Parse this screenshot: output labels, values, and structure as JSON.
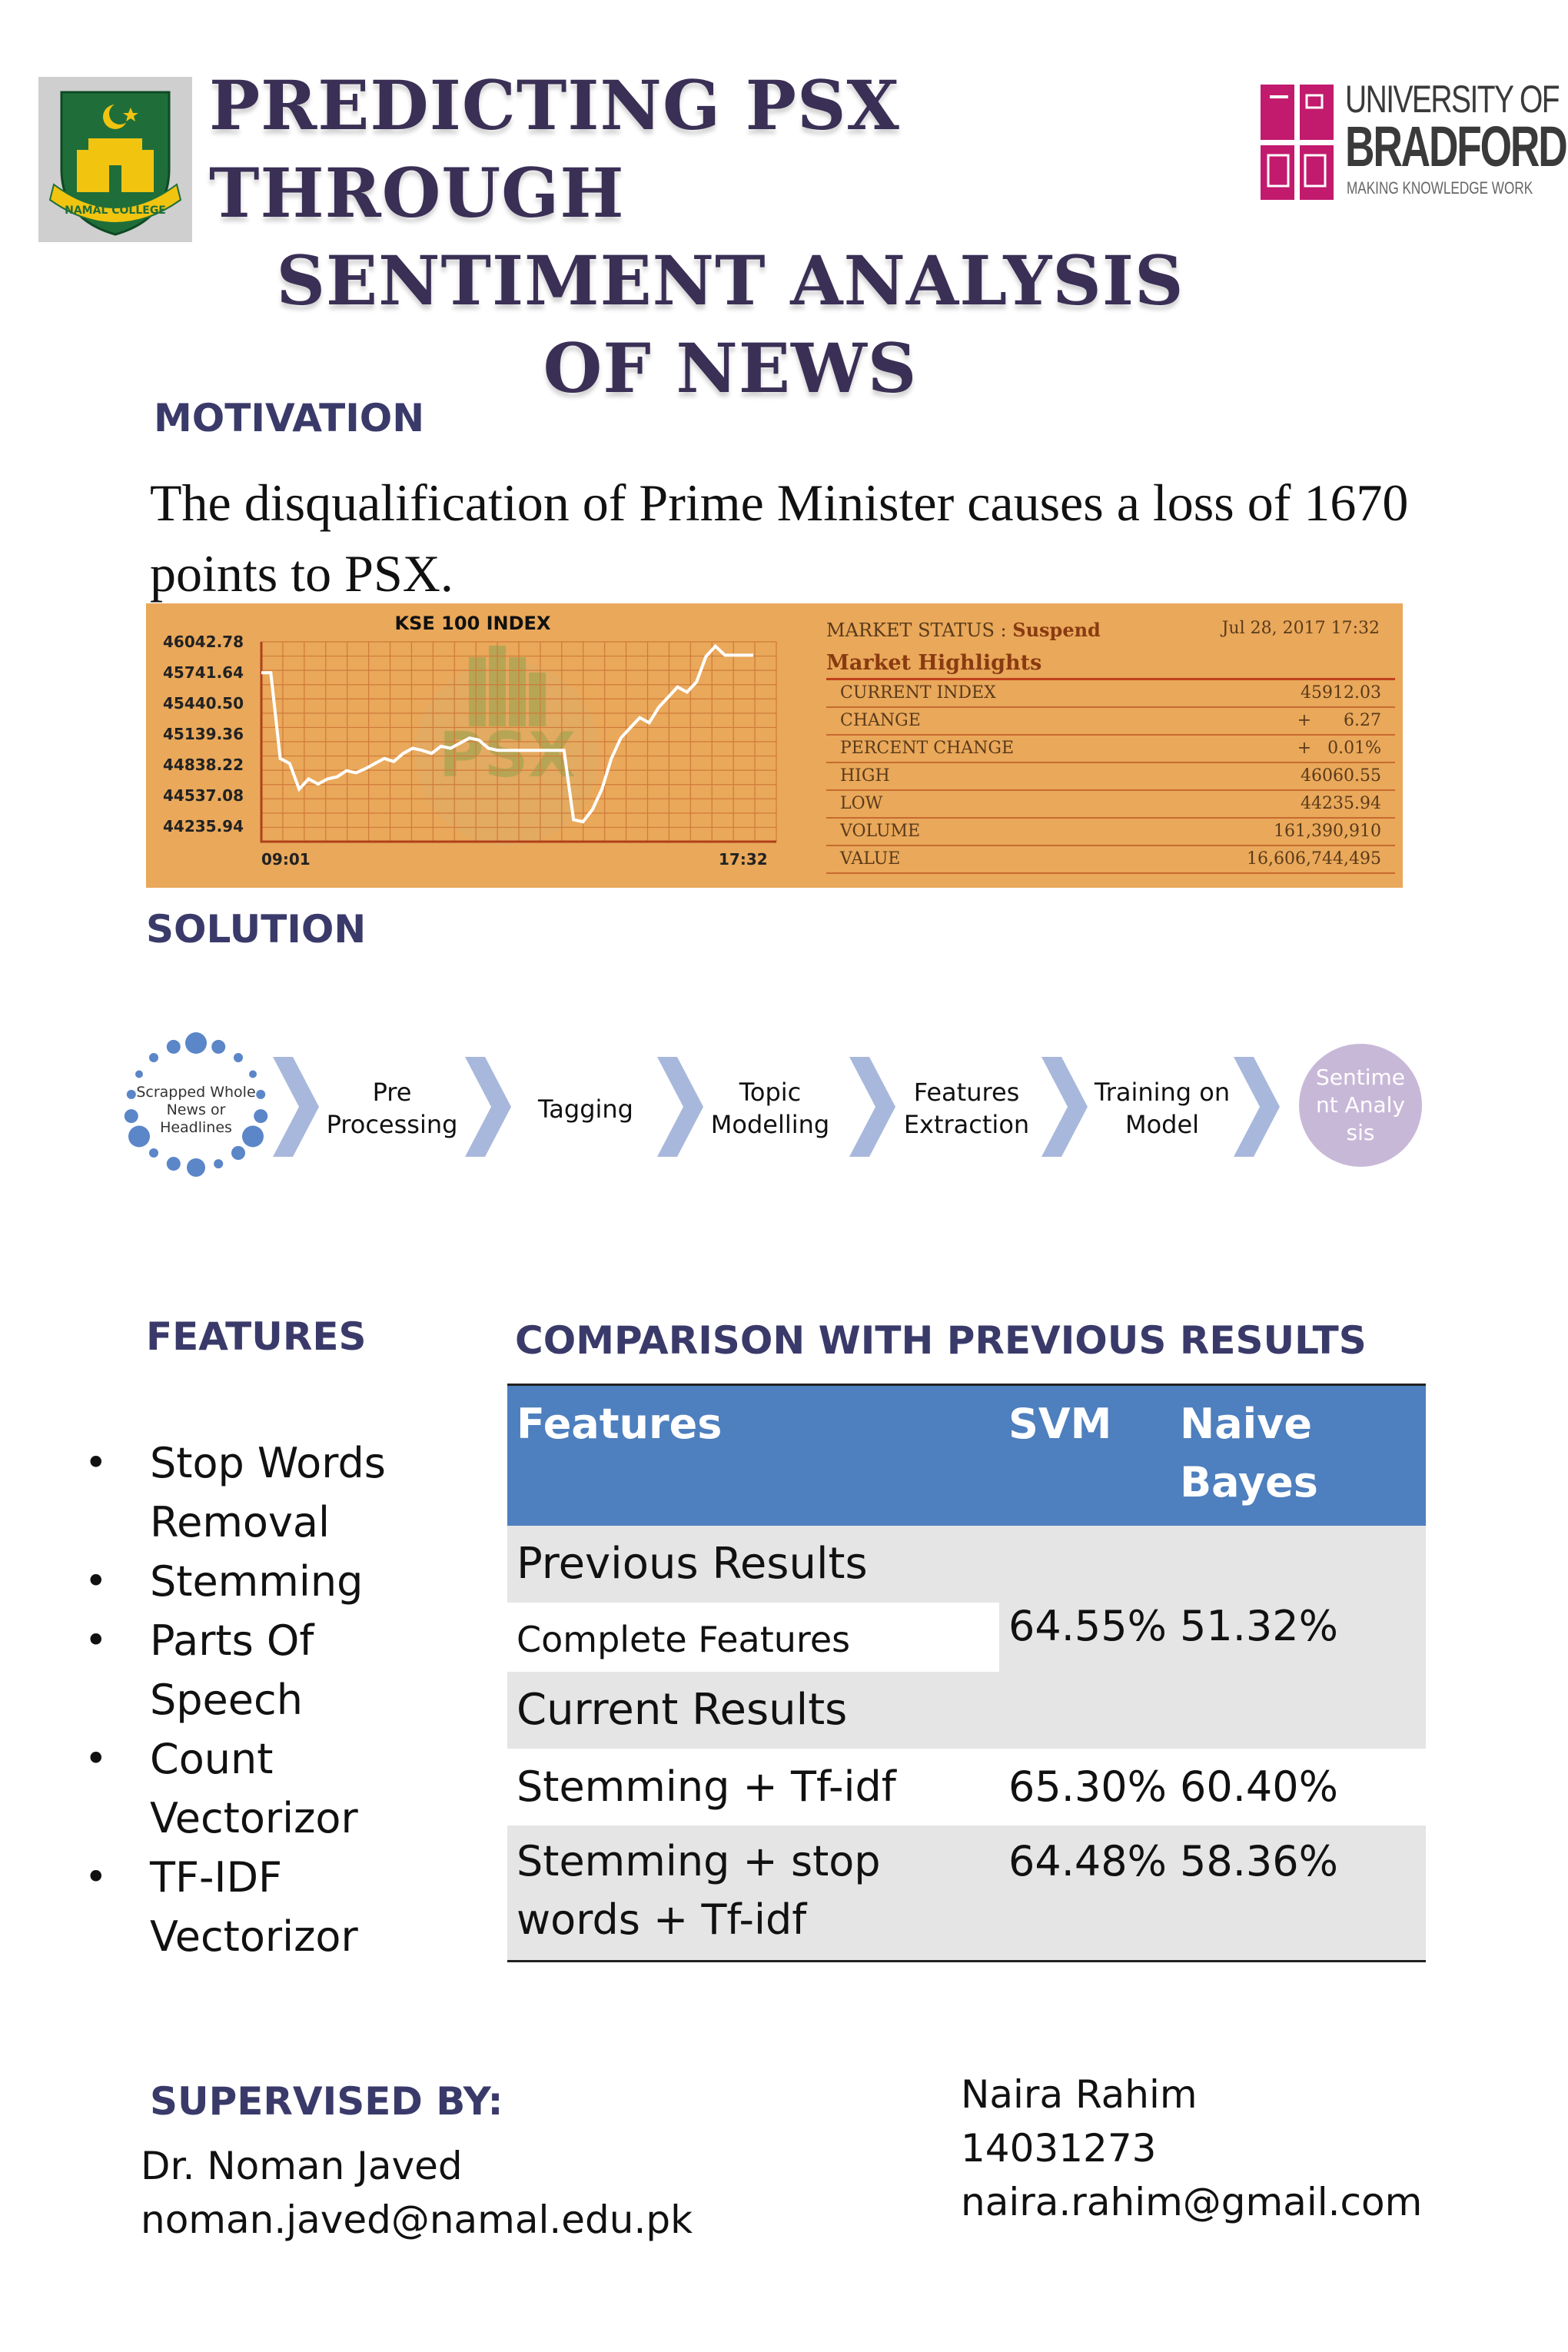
{
  "header": {
    "title_lines": [
      "PREDICTING PSX THROUGH",
      "SENTIMENT ANALYSIS",
      "OF NEWS"
    ],
    "left_logo_text": "NAMAL COLLEGE",
    "right_logo": {
      "line1": "UNIVERSITY OF",
      "line2": "BRADFORD",
      "tagline": "MAKING KNOWLEDGE WORK"
    }
  },
  "motivation": {
    "heading": "MOTIVATION",
    "text": "The disqualification of Prime Minister causes a loss of 1670 points to PSX."
  },
  "psx_panel": {
    "chart_title": "KSE 100 INDEX",
    "y_ticks": [
      "46042.78",
      "45741.64",
      "45440.50",
      "45139.36",
      "44838.22",
      "44537.08",
      "44235.94"
    ],
    "x_ticks": [
      "09:01",
      "17:32"
    ],
    "watermark": "PSX",
    "market_status_label": "MARKET STATUS :",
    "market_status_value": "Suspend",
    "date": "Jul 28, 2017 17:32",
    "highlights_title": "Market Highlights",
    "rows": [
      {
        "label": "CURRENT INDEX",
        "value": "45912.03"
      },
      {
        "label": "CHANGE",
        "value": "+      6.27"
      },
      {
        "label": "PERCENT CHANGE",
        "value": "+   0.01%"
      },
      {
        "label": "HIGH",
        "value": "46060.55"
      },
      {
        "label": "LOW",
        "value": "44235.94"
      },
      {
        "label": "VOLUME",
        "value": "161,390,910"
      },
      {
        "label": "VALUE",
        "value": "16,606,744,495"
      }
    ]
  },
  "chart_data": {
    "type": "line",
    "title": "KSE 100 INDEX",
    "ylim": [
      44235.94,
      46042.78
    ],
    "x_labels": [
      "09:01",
      "17:32"
    ],
    "series": [
      {
        "values": [
          45740,
          45740,
          44900,
          44850,
          44600,
          44700,
          44650,
          44700,
          44720,
          44780,
          44760,
          44800,
          44850,
          44900,
          44870,
          44950,
          45000,
          44980,
          44950,
          45020,
          45000,
          45050,
          45100,
          45080,
          45000,
          44980,
          44980,
          44980,
          44980,
          44980,
          44980,
          44980,
          44980,
          44300,
          44280,
          44400,
          44600,
          44900,
          45100,
          45200,
          45300,
          45250,
          45400,
          45500,
          45600,
          45550,
          45650,
          45900,
          46000,
          45912,
          45912,
          45912,
          45912
        ]
      }
    ]
  },
  "solution": {
    "heading": "SOLUTION",
    "source": "Scrapped Whole News or Headlines",
    "steps": [
      "Pre Processing",
      "Tagging",
      "Topic Modelling",
      "Features Extraction",
      "Training on Model"
    ],
    "final": "Sentime nt Analysis",
    "colors": {
      "chevron": "#a8b8dc",
      "bubble": "#5b86c8",
      "final_circle": "#c8b8d8"
    }
  },
  "features": {
    "heading": "FEATURES",
    "items": [
      "Stop Words Removal",
      "Stemming",
      "Parts Of Speech",
      "Count Vectorizor",
      "TF-IDF Vectorizor"
    ]
  },
  "comparison": {
    "heading": "COMPARISON WITH PREVIOUS RESULTS",
    "columns": [
      "Features",
      "SVM",
      "Naive Bayes"
    ],
    "previous_label": "Previous Results",
    "complete_features": "Complete Features",
    "prev_svm": "64.55%",
    "prev_nb": "51.32%",
    "current_label": "Current Results",
    "rows": [
      {
        "feature": "Stemming + Tf-idf",
        "svm": "65.30%",
        "nb": "60.40%"
      },
      {
        "feature": "Stemming + stop words + Tf-idf",
        "svm": "64.48%",
        "nb": "58.36%"
      }
    ],
    "colors": {
      "header": "#4e7fbe",
      "band": "#e5e5e5"
    }
  },
  "supervisor": {
    "heading": "SUPERVISED BY:",
    "name": "Dr. Noman Javed",
    "email": "noman.javed@namal.edu.pk"
  },
  "student": {
    "name": "Naira Rahim",
    "id": "14031273",
    "email": "naira.rahim@gmail.com"
  }
}
